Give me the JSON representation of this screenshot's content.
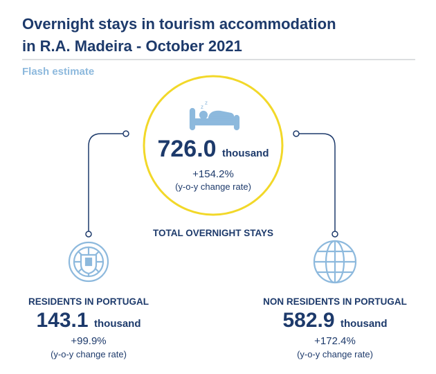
{
  "header": {
    "title_lines": [
      "Overnight stays in tourism accommodation",
      "in R.A. Madeira - October 2021"
    ],
    "subtitle": "Flash estimate"
  },
  "total": {
    "value": "726.0",
    "unit": "thousand",
    "change": "+154.2%",
    "change_note": "(y-o-y change rate)",
    "label": "TOTAL OVERNIGHT STAYS"
  },
  "groups": [
    {
      "label": "RESIDENTS IN PORTUGAL",
      "value": "143.1",
      "unit": "thousand",
      "change": "+99.9%",
      "change_note": "(y-o-y change rate)"
    },
    {
      "label": "NON RESIDENTS IN PORTUGAL",
      "value": "582.9",
      "unit": "thousand",
      "change": "+172.4%",
      "change_note": "(y-o-y change rate)"
    }
  ]
}
